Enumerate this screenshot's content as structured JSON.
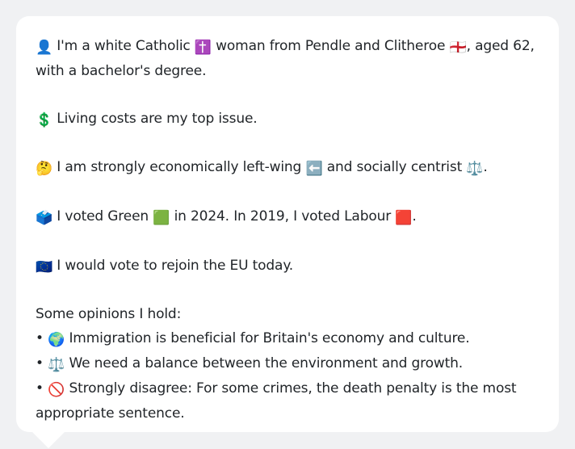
{
  "persona": {
    "identity": {
      "icon": "👤",
      "part1": " I'm a white Catholic ",
      "religion_icon": "✝️",
      "part2": " woman from Pendle and Clitheroe ",
      "flag_icon": "🏴󠁧󠁢󠁥󠁮󠁧󠁿",
      "part3": ", aged 62, with a bachelor's degree."
    },
    "top_issue": {
      "icon": "💲",
      "text": " Living costs are my top issue."
    },
    "ideology": {
      "icon": "🤔",
      "part1": " I am strongly economically left-wing ",
      "left_icon": "⬅️",
      "part2": " and socially centrist ",
      "centre_icon": "⚖️",
      "part3": "."
    },
    "voting": {
      "icon": "🗳️",
      "part1": " I voted Green ",
      "green_icon": "🟩",
      "part2": " in 2024. In 2019, I voted Labour ",
      "labour_icon": "🟥",
      "part3": "."
    },
    "eu": {
      "icon": "🇪🇺",
      "text": " I would vote to rejoin the EU today."
    },
    "opinions": {
      "heading": "Some opinions I hold:",
      "items": [
        {
          "bullet": "•",
          "icon": "🌍",
          "text": " Immigration is beneficial for Britain's economy and culture."
        },
        {
          "bullet": "•",
          "icon": "⚖️",
          "text": " We need a balance between the environment and growth."
        },
        {
          "bullet": "•",
          "icon": "🚫",
          "text": " Strongly disagree: For some crimes, the death penalty is the most appropriate sentence."
        }
      ]
    }
  },
  "colors": {
    "page_background": "#f0f1f3",
    "card_background": "#ffffff",
    "text": "#212529"
  }
}
